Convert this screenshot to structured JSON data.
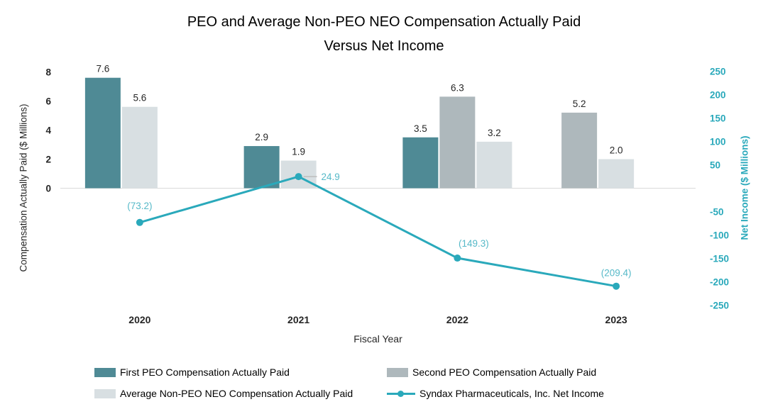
{
  "title": {
    "line1": "PEO and Average Non-PEO NEO Compensation Actually Paid",
    "line2": "Versus Net Income"
  },
  "chart_data": {
    "type": "combo-bar-line",
    "categories": [
      "2020",
      "2021",
      "2022",
      "2023"
    ],
    "x_axis": {
      "title": "Fiscal Year"
    },
    "left_axis": {
      "title": "Compensation Actually Paid ($ Millions)",
      "ticks": [
        8,
        6,
        4,
        2,
        0
      ]
    },
    "right_axis": {
      "title": "Net Income ($ Millions)",
      "ticks": [
        250,
        200,
        150,
        100,
        50,
        -50,
        -100,
        -150,
        -200,
        -250
      ],
      "color": "#2aa9bb"
    },
    "bar_series": [
      {
        "name": "First PEO Compensation Actually Paid",
        "color": "#4f8a95",
        "values": [
          7.6,
          2.9,
          3.5,
          null
        ]
      },
      {
        "name": "Second PEO Compensation Actually Paid",
        "color": "#aeb8bc",
        "values": [
          null,
          null,
          6.3,
          5.2
        ]
      },
      {
        "name": "Average Non-PEO NEO Compensation Actually Paid",
        "color": "#d8dfe2",
        "values": [
          5.6,
          1.9,
          3.2,
          2.0
        ]
      }
    ],
    "line_series": {
      "name": "Syndax Pharmaceuticals, Inc. Net Income",
      "color": "#2aa9bb",
      "label_color": "#56b9c8",
      "values": [
        -73.2,
        24.9,
        -149.3,
        -209.4
      ],
      "point_labels": [
        "(73.2)",
        "24.9",
        "(149.3)",
        "(209.4)"
      ]
    }
  },
  "legend": {
    "items": [
      {
        "label": "First PEO Compensation Actually Paid",
        "type": "swatch",
        "color": "#4f8a95"
      },
      {
        "label": "Second PEO Compensation Actually Paid",
        "type": "swatch",
        "color": "#aeb8bc"
      },
      {
        "label": "Average Non-PEO NEO Compensation Actually Paid",
        "type": "swatch",
        "color": "#d8dfe2"
      },
      {
        "label": "Syndax Pharmaceuticals, Inc. Net Income",
        "type": "line",
        "color": "#2aa9bb"
      }
    ]
  }
}
